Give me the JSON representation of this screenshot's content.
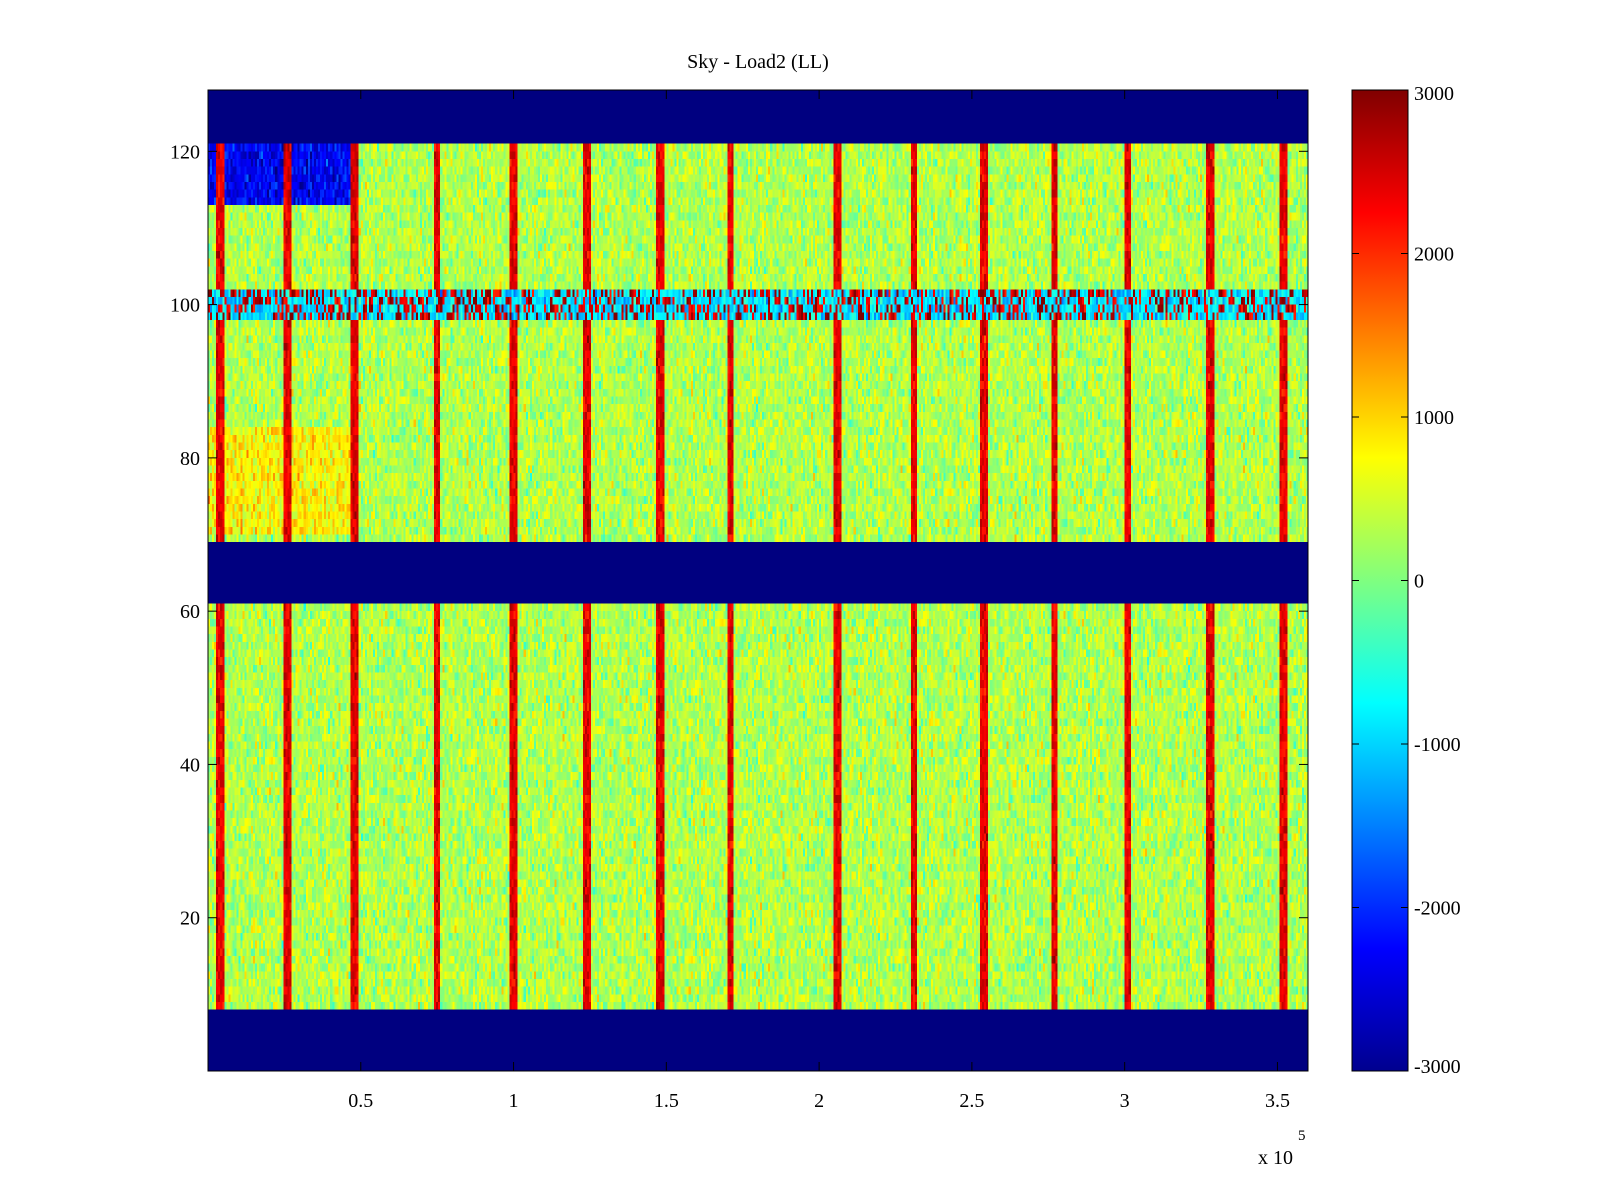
{
  "chart_data": {
    "type": "heatmap",
    "title": "Sky - Load2 (LL)",
    "xlabel": "",
    "ylabel": "",
    "x_exponent_label": "x 10",
    "x_exponent": "5",
    "xlim": [
      0,
      360000
    ],
    "ylim": [
      0,
      128
    ],
    "x_tick_values": [
      50000,
      100000,
      150000,
      200000,
      250000,
      300000,
      350000
    ],
    "x_tick_labels": [
      "0.5",
      "1",
      "1.5",
      "2",
      "2.5",
      "3",
      "3.5"
    ],
    "y_tick_values": [
      20,
      40,
      60,
      80,
      100,
      120
    ],
    "y_tick_labels": [
      "20",
      "40",
      "60",
      "80",
      "100",
      "120"
    ],
    "colormap": "jet",
    "clim": [
      -3000,
      3000
    ],
    "colorbar_tick_values": [
      3000,
      2000,
      1000,
      0,
      -1000,
      -2000,
      -3000
    ],
    "colorbar_tick_labels": [
      "3000",
      "2000",
      "1000",
      "0",
      "-1000",
      "-2000",
      "-3000"
    ],
    "colorbar_position": "right",
    "grid": false,
    "empty_row_bands": [
      [
        0,
        7.5
      ],
      [
        61.5,
        68.5
      ],
      [
        121.5,
        128
      ]
    ],
    "stripe_x_positions": [
      4000,
      26000,
      48000,
      75000,
      100000,
      124000,
      148000,
      171000,
      206000,
      231000,
      254000,
      277000,
      301000,
      328000,
      352000
    ],
    "high_row_band": [
      98.5,
      101.5
    ],
    "low_corner_region": {
      "x": [
        0,
        48000
      ],
      "y": [
        113,
        121.5
      ]
    },
    "base_value": 300
  }
}
